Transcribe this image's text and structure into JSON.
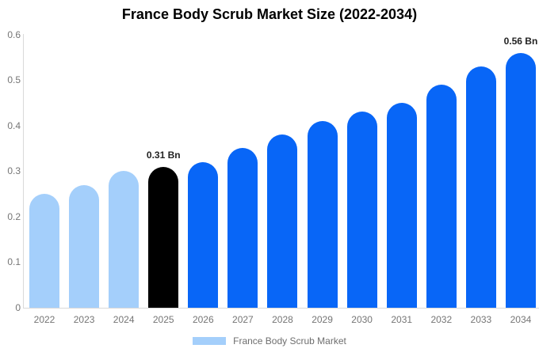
{
  "colors": {
    "historical_bar": "#A4CFFB",
    "base_year_bar": "#000000",
    "forecast_bar": "#0866F7",
    "axis_line": "#D9D9D9",
    "tick_text": "#757575",
    "data_label_text": "#222222"
  },
  "chart_data": {
    "type": "bar",
    "title": "France Body Scrub Market Size (2022-2034)",
    "categories": [
      "2022",
      "2023",
      "2024",
      "2025",
      "2026",
      "2027",
      "2028",
      "2029",
      "2030",
      "2031",
      "2032",
      "2033",
      "2034"
    ],
    "values": [
      0.25,
      0.27,
      0.3,
      0.31,
      0.32,
      0.35,
      0.38,
      0.41,
      0.43,
      0.45,
      0.49,
      0.53,
      0.56
    ],
    "bar_colors": [
      "#A4CFFB",
      "#A4CFFB",
      "#A4CFFB",
      "#000000",
      "#0866F7",
      "#0866F7",
      "#0866F7",
      "#0866F7",
      "#0866F7",
      "#0866F7",
      "#0866F7",
      "#0866F7",
      "#0866F7"
    ],
    "unit": "Bn",
    "xlabel": "",
    "ylabel": "",
    "ylim": [
      0,
      0.6
    ],
    "yticks": [
      0,
      0.1,
      0.2,
      0.3,
      0.4,
      0.5,
      0.6
    ],
    "ytick_labels": [
      "0",
      "0.1",
      "0.2",
      "0.3",
      "0.4",
      "0.5",
      "0.6"
    ],
    "grid": false,
    "annotations": [
      {
        "category": "2025",
        "text": "0.31 Bn"
      },
      {
        "category": "2034",
        "text": "0.56 Bn"
      }
    ],
    "legend": [
      "France Body Scrub Market"
    ],
    "legend_position": "bottom"
  }
}
